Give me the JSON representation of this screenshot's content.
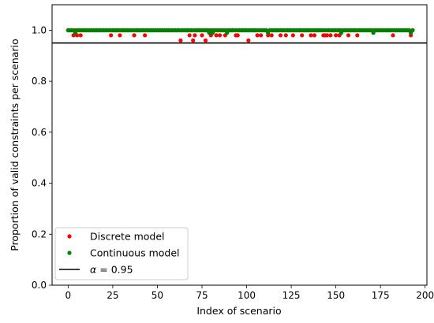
{
  "chart_data": {
    "type": "scatter",
    "xlabel": "Index of scenario",
    "ylabel": "Proportion of valid constraints per scenario",
    "xlim": [
      -9,
      201
    ],
    "ylim": [
      0,
      1.1
    ],
    "x_ticks": [
      0,
      25,
      50,
      75,
      100,
      125,
      150,
      175,
      200
    ],
    "y_ticks": [
      0.0,
      0.2,
      0.4,
      0.6,
      0.8,
      1.0
    ],
    "x_tick_labels": [
      "0",
      "25",
      "50",
      "75",
      "100",
      "125",
      "150",
      "175",
      "200"
    ],
    "y_tick_labels": [
      "0.0",
      "0.2",
      "0.4",
      "0.6",
      "0.8",
      "1.0"
    ],
    "n_points": 194,
    "reference_line": {
      "y": 0.95,
      "color": "#000000",
      "label_prefix": "α",
      "label_value": "= 0.95"
    },
    "legend": {
      "placement": "lower-left"
    },
    "series": [
      {
        "name": "Discrete model",
        "color": "#ff0000",
        "default_value": 1.0,
        "overrides": [
          {
            "x": 3,
            "y": 0.98
          },
          {
            "x": 5,
            "y": 0.98
          },
          {
            "x": 7,
            "y": 0.98
          },
          {
            "x": 24,
            "y": 0.98
          },
          {
            "x": 29,
            "y": 0.98
          },
          {
            "x": 37,
            "y": 0.98
          },
          {
            "x": 43,
            "y": 0.98
          },
          {
            "x": 63,
            "y": 0.96
          },
          {
            "x": 68,
            "y": 0.98
          },
          {
            "x": 70,
            "y": 0.96
          },
          {
            "x": 71,
            "y": 0.98
          },
          {
            "x": 75,
            "y": 0.98
          },
          {
            "x": 77,
            "y": 0.96
          },
          {
            "x": 80,
            "y": 0.98
          },
          {
            "x": 83,
            "y": 0.98
          },
          {
            "x": 85,
            "y": 0.98
          },
          {
            "x": 88,
            "y": 0.98
          },
          {
            "x": 94,
            "y": 0.98
          },
          {
            "x": 95,
            "y": 0.98
          },
          {
            "x": 101,
            "y": 0.96
          },
          {
            "x": 106,
            "y": 0.98
          },
          {
            "x": 108,
            "y": 0.98
          },
          {
            "x": 112,
            "y": 0.98
          },
          {
            "x": 114,
            "y": 0.98
          },
          {
            "x": 119,
            "y": 0.98
          },
          {
            "x": 122,
            "y": 0.98
          },
          {
            "x": 126,
            "y": 0.98
          },
          {
            "x": 131,
            "y": 0.98
          },
          {
            "x": 136,
            "y": 0.98
          },
          {
            "x": 138,
            "y": 0.98
          },
          {
            "x": 143,
            "y": 0.98
          },
          {
            "x": 144,
            "y": 0.98
          },
          {
            "x": 145,
            "y": 0.98
          },
          {
            "x": 147,
            "y": 0.98
          },
          {
            "x": 150,
            "y": 0.98
          },
          {
            "x": 152,
            "y": 0.98
          },
          {
            "x": 157,
            "y": 0.98
          },
          {
            "x": 162,
            "y": 0.98
          },
          {
            "x": 182,
            "y": 0.98
          },
          {
            "x": 192,
            "y": 0.98
          }
        ]
      },
      {
        "name": "Continuous model",
        "color": "#008000",
        "default_value": 1.0,
        "overrides": [
          {
            "x": 4,
            "y": 0.99
          },
          {
            "x": 79,
            "y": 0.99
          },
          {
            "x": 81,
            "y": 0.99
          },
          {
            "x": 89,
            "y": 0.99
          },
          {
            "x": 112,
            "y": 0.99
          },
          {
            "x": 153,
            "y": 0.99
          },
          {
            "x": 171,
            "y": 0.99
          },
          {
            "x": 192,
            "y": 0.99
          }
        ]
      }
    ]
  }
}
